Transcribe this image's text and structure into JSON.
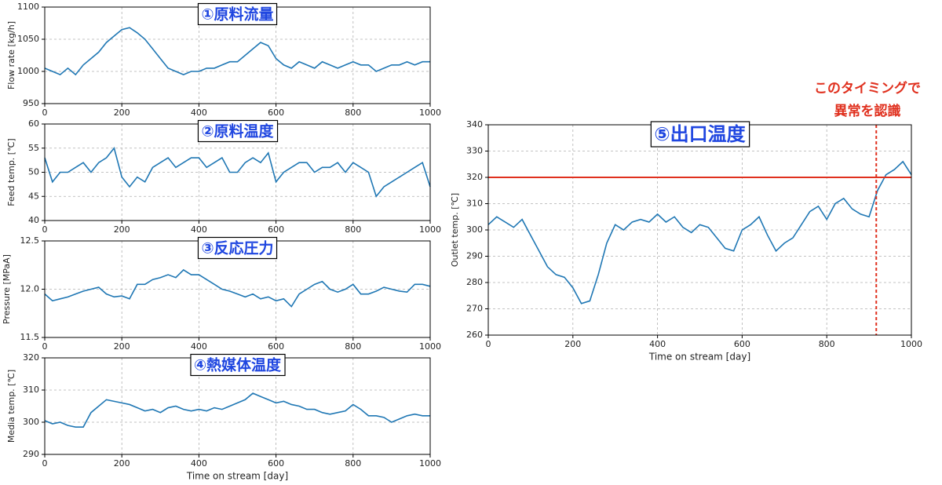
{
  "chart_data": [
    {
      "type": "line",
      "title": "①原料流量",
      "ylabel": "Flow rate [kg/h]",
      "color": "#1f77b4",
      "grid": true,
      "x": [
        0,
        20,
        40,
        60,
        80,
        100,
        120,
        140,
        160,
        180,
        200,
        220,
        240,
        260,
        280,
        300,
        320,
        340,
        360,
        380,
        400,
        420,
        440,
        460,
        480,
        500,
        520,
        540,
        560,
        580,
        600,
        620,
        640,
        660,
        680,
        700,
        720,
        740,
        760,
        780,
        800,
        820,
        840,
        860,
        880,
        900,
        920,
        940,
        960,
        980,
        1000
      ],
      "values": [
        1005,
        1000,
        995,
        1005,
        995,
        1010,
        1020,
        1030,
        1045,
        1055,
        1065,
        1068,
        1060,
        1050,
        1035,
        1020,
        1005,
        1000,
        995,
        1000,
        1000,
        1005,
        1005,
        1010,
        1015,
        1015,
        1025,
        1035,
        1045,
        1040,
        1020,
        1010,
        1005,
        1015,
        1010,
        1005,
        1015,
        1010,
        1005,
        1010,
        1015,
        1010,
        1010,
        1000,
        1005,
        1010,
        1010,
        1015,
        1010,
        1015,
        1015
      ],
      "xlim": [
        0,
        1000
      ],
      "xticks": [
        0,
        200,
        400,
        600,
        800,
        1000
      ],
      "ylim": [
        950,
        1100
      ],
      "yticks": [
        950,
        1000,
        1050,
        1100
      ]
    },
    {
      "type": "line",
      "title": "②原料温度",
      "ylabel": "Feed temp. [℃]",
      "color": "#1f77b4",
      "grid": true,
      "x": [
        0,
        20,
        40,
        60,
        80,
        100,
        120,
        140,
        160,
        180,
        200,
        220,
        240,
        260,
        280,
        300,
        320,
        340,
        360,
        380,
        400,
        420,
        440,
        460,
        480,
        500,
        520,
        540,
        560,
        580,
        600,
        620,
        640,
        660,
        680,
        700,
        720,
        740,
        760,
        780,
        800,
        820,
        840,
        860,
        880,
        900,
        920,
        940,
        960,
        980,
        1000
      ],
      "values": [
        53,
        48,
        50,
        50,
        51,
        52,
        50,
        52,
        53,
        55,
        49,
        47,
        49,
        48,
        51,
        52,
        53,
        51,
        52,
        53,
        53,
        51,
        52,
        53,
        50,
        50,
        52,
        53,
        52,
        54,
        48,
        50,
        51,
        52,
        52,
        50,
        51,
        51,
        52,
        50,
        52,
        51,
        50,
        45,
        47,
        48,
        49,
        50,
        51,
        52,
        47
      ],
      "xlim": [
        0,
        1000
      ],
      "xticks": [
        0,
        200,
        400,
        600,
        800,
        1000
      ],
      "ylim": [
        40,
        60
      ],
      "yticks": [
        40,
        45,
        50,
        55,
        60
      ]
    },
    {
      "type": "line",
      "title": "③反応圧力",
      "ylabel": "Pressure [MPaA]",
      "color": "#1f77b4",
      "grid": true,
      "x": [
        0,
        20,
        40,
        60,
        80,
        100,
        120,
        140,
        160,
        180,
        200,
        220,
        240,
        260,
        280,
        300,
        320,
        340,
        360,
        380,
        400,
        420,
        440,
        460,
        480,
        500,
        520,
        540,
        560,
        580,
        600,
        620,
        640,
        660,
        680,
        700,
        720,
        740,
        760,
        780,
        800,
        820,
        840,
        860,
        880,
        900,
        920,
        940,
        960,
        980,
        1000
      ],
      "values": [
        11.95,
        11.88,
        11.9,
        11.92,
        11.95,
        11.98,
        12.0,
        12.02,
        11.95,
        11.92,
        11.93,
        11.9,
        12.05,
        12.05,
        12.1,
        12.12,
        12.15,
        12.12,
        12.2,
        12.15,
        12.15,
        12.1,
        12.05,
        12.0,
        11.98,
        11.95,
        11.92,
        11.95,
        11.9,
        11.92,
        11.88,
        11.9,
        11.82,
        11.95,
        12.0,
        12.05,
        12.08,
        12.0,
        11.97,
        12.0,
        12.05,
        11.95,
        11.95,
        11.98,
        12.02,
        12.0,
        11.98,
        11.97,
        12.05,
        12.05,
        12.03
      ],
      "xlim": [
        0,
        1000
      ],
      "xticks": [
        0,
        200,
        400,
        600,
        800,
        1000
      ],
      "ylim": [
        11.5,
        12.5
      ],
      "yticks": [
        11.5,
        {
          "value": 12,
          "label": "12.0"
        },
        12.5
      ]
    },
    {
      "type": "line",
      "title": "④熱媒体温度",
      "ylabel": "Media temp. [℃]",
      "xlabel": "Time on stream [day]",
      "color": "#1f77b4",
      "grid": true,
      "x": [
        0,
        20,
        40,
        60,
        80,
        100,
        120,
        140,
        160,
        180,
        200,
        220,
        240,
        260,
        280,
        300,
        320,
        340,
        360,
        380,
        400,
        420,
        440,
        460,
        480,
        500,
        520,
        540,
        560,
        580,
        600,
        620,
        640,
        660,
        680,
        700,
        720,
        740,
        760,
        780,
        800,
        820,
        840,
        860,
        880,
        900,
        920,
        940,
        960,
        980,
        1000
      ],
      "values": [
        300.5,
        299.5,
        300,
        299,
        298.5,
        298.5,
        303,
        305,
        307,
        306.5,
        306,
        305.5,
        304.5,
        303.5,
        304,
        303,
        304.5,
        305,
        304,
        303.5,
        304,
        303.5,
        304.5,
        304,
        305,
        306,
        307,
        309,
        308,
        307,
        306,
        306.5,
        305.5,
        305,
        304,
        304,
        303,
        302.5,
        303,
        303.5,
        305.5,
        304,
        302,
        302,
        301.5,
        300,
        301,
        302,
        302.5,
        302,
        302
      ],
      "xlim": [
        0,
        1000
      ],
      "xticks": [
        0,
        200,
        400,
        600,
        800,
        1000
      ],
      "ylim": [
        290,
        320
      ],
      "yticks": [
        290,
        300,
        310,
        320
      ]
    },
    {
      "type": "line",
      "title": "⑤出口温度",
      "ylabel": "Outlet temp. [℃]",
      "xlabel": "Time on stream [day]",
      "color": "#1f77b4",
      "grid": true,
      "x": [
        0,
        20,
        40,
        60,
        80,
        100,
        120,
        140,
        160,
        180,
        200,
        220,
        240,
        260,
        280,
        300,
        320,
        340,
        360,
        380,
        400,
        420,
        440,
        460,
        480,
        500,
        520,
        540,
        560,
        580,
        600,
        620,
        640,
        660,
        680,
        700,
        720,
        740,
        760,
        780,
        800,
        820,
        840,
        860,
        880,
        900,
        920,
        940,
        960,
        980,
        1000
      ],
      "values": [
        302,
        305,
        303,
        301,
        304,
        298,
        292,
        286,
        283,
        282,
        278,
        272,
        273,
        283,
        295,
        302,
        300,
        303,
        304,
        303,
        306,
        303,
        305,
        301,
        299,
        302,
        301,
        297,
        293,
        292,
        300,
        302,
        305,
        298,
        292,
        295,
        297,
        302,
        307,
        309,
        304,
        310,
        312,
        308,
        306,
        305,
        315,
        321,
        323,
        326,
        321
      ],
      "xlim": [
        0,
        1000
      ],
      "xticks": [
        0,
        200,
        400,
        600,
        800,
        1000
      ],
      "ylim": [
        260,
        340
      ],
      "yticks": [
        260,
        270,
        280,
        290,
        300,
        310,
        320,
        330,
        340
      ],
      "threshold": 320,
      "marker_x": 917,
      "annotation_color": "#e0301e",
      "annotation": [
        "このタイミングで",
        "異常を認識"
      ]
    }
  ]
}
